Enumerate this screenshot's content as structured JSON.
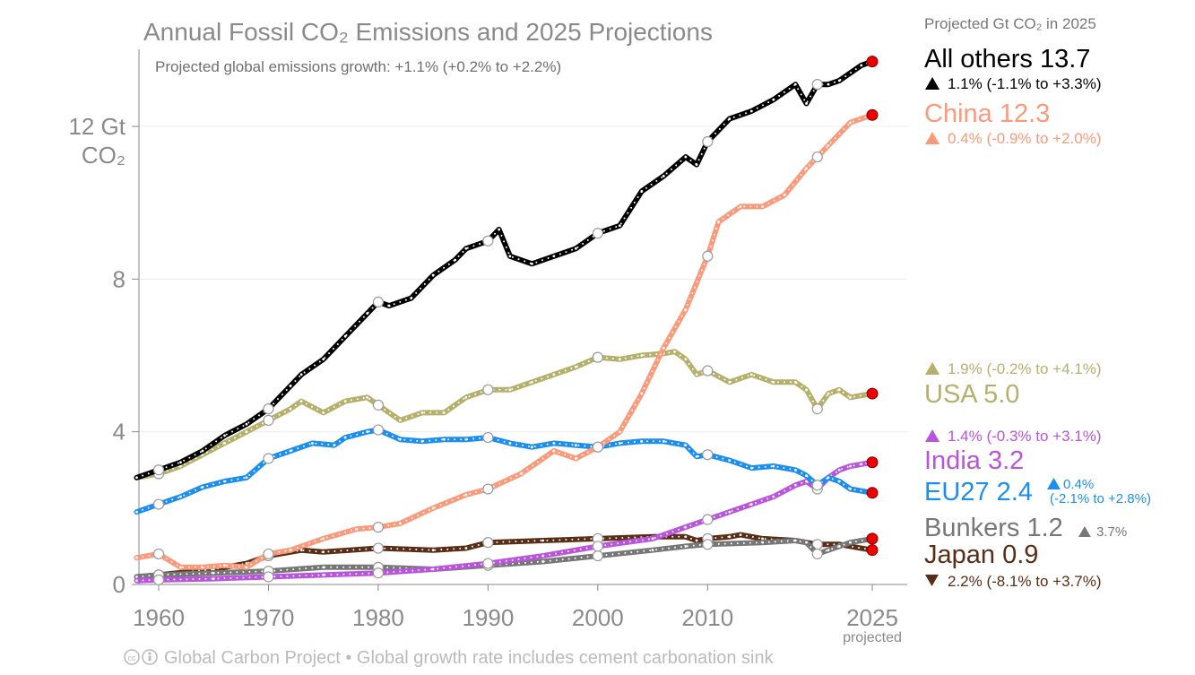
{
  "chart_data": {
    "type": "line",
    "title": "Annual Fossil CO₂ Emissions and 2025 Projections",
    "subtitle": "Projected global emissions growth: +1.1% (+0.2% to +2.2%)",
    "ylabel_line1": "12 Gt",
    "ylabel_line2": "CO₂",
    "legend_header": "Projected Gt CO₂ in 2025",
    "xlim": [
      1958,
      2028
    ],
    "ylim": [
      0,
      14
    ],
    "x_ticks": [
      {
        "value": 1960,
        "label": "1960"
      },
      {
        "value": 1970,
        "label": "1970"
      },
      {
        "value": 1980,
        "label": "1980"
      },
      {
        "value": 1990,
        "label": "1990"
      },
      {
        "value": 2000,
        "label": "2000"
      },
      {
        "value": 2010,
        "label": "2010"
      },
      {
        "value": 2025,
        "label": "2025"
      }
    ],
    "x_tick_note": "projected",
    "y_ticks": [
      {
        "value": 0,
        "label": "0"
      },
      {
        "value": 4,
        "label": "4"
      },
      {
        "value": 8,
        "label": "8"
      },
      {
        "value": 12,
        "label": ""
      }
    ],
    "grid": true,
    "footer": "Global Carbon Project  •  Global growth rate includes cement carbonation sink",
    "series": [
      {
        "id": "others",
        "name": "All others 13.7",
        "color": "#000000",
        "growth": "1.1% (-1.1% to +3.3%)",
        "arrow": "up",
        "x": [
          1958,
          1960,
          1962,
          1964,
          1966,
          1968,
          1970,
          1972,
          1973,
          1975,
          1977,
          1979,
          1980,
          1981,
          1983,
          1985,
          1987,
          1988,
          1990,
          1991,
          1992,
          1994,
          1996,
          1998,
          2000,
          2002,
          2004,
          2006,
          2008,
          2009,
          2010,
          2012,
          2014,
          2016,
          2018,
          2019,
          2020,
          2021,
          2022,
          2024,
          2025
        ],
        "values": [
          2.8,
          3.0,
          3.2,
          3.5,
          3.9,
          4.2,
          4.6,
          5.2,
          5.5,
          5.9,
          6.5,
          7.1,
          7.4,
          7.3,
          7.5,
          8.1,
          8.5,
          8.8,
          9.0,
          9.3,
          8.6,
          8.4,
          8.6,
          8.8,
          9.2,
          9.4,
          10.3,
          10.7,
          11.2,
          11.0,
          11.6,
          12.2,
          12.4,
          12.7,
          13.1,
          12.6,
          13.1,
          13.1,
          13.2,
          13.6,
          13.7
        ]
      },
      {
        "id": "china",
        "name": "China 12.3",
        "color": "#fb9a7a",
        "growth": "0.4% (-0.9% to +2.0%)",
        "arrow": "up",
        "x": [
          1958,
          1960,
          1962,
          1964,
          1966,
          1968,
          1970,
          1972,
          1975,
          1978,
          1980,
          1982,
          1985,
          1988,
          1990,
          1993,
          1996,
          1998,
          2000,
          2002,
          2004,
          2006,
          2008,
          2010,
          2011,
          2013,
          2015,
          2017,
          2019,
          2021,
          2023,
          2025
        ],
        "values": [
          0.7,
          0.8,
          0.45,
          0.45,
          0.5,
          0.45,
          0.8,
          0.9,
          1.2,
          1.45,
          1.5,
          1.6,
          2.0,
          2.35,
          2.5,
          2.9,
          3.5,
          3.3,
          3.6,
          4.0,
          5.0,
          6.2,
          7.2,
          8.6,
          9.5,
          9.9,
          9.9,
          10.2,
          10.9,
          11.5,
          12.1,
          12.3
        ]
      },
      {
        "id": "usa",
        "name": "USA 5.0",
        "color": "#b5b06c",
        "growth": "1.9% (-0.2% to +4.1%)",
        "arrow": "up",
        "x": [
          1958,
          1960,
          1962,
          1964,
          1966,
          1968,
          1970,
          1972,
          1973,
          1975,
          1977,
          1979,
          1980,
          1982,
          1984,
          1986,
          1988,
          1990,
          1992,
          1994,
          1996,
          1998,
          2000,
          2002,
          2004,
          2006,
          2007,
          2008,
          2009,
          2010,
          2012,
          2014,
          2016,
          2018,
          2019,
          2020,
          2021,
          2022,
          2023,
          2025
        ],
        "values": [
          2.8,
          2.9,
          3.1,
          3.4,
          3.7,
          4.0,
          4.3,
          4.6,
          4.8,
          4.5,
          4.8,
          4.9,
          4.7,
          4.3,
          4.5,
          4.5,
          4.9,
          5.1,
          5.1,
          5.3,
          5.5,
          5.7,
          5.95,
          5.9,
          6.0,
          6.05,
          6.1,
          5.9,
          5.5,
          5.6,
          5.3,
          5.5,
          5.3,
          5.3,
          5.1,
          4.6,
          5.0,
          5.1,
          4.9,
          5.0
        ]
      },
      {
        "id": "india",
        "name": "India 3.2",
        "color": "#b954dd",
        "growth": "1.4% (-0.3% to +3.1%)",
        "arrow": "up",
        "x": [
          1958,
          1960,
          1965,
          1970,
          1975,
          1980,
          1985,
          1990,
          1995,
          2000,
          2005,
          2008,
          2010,
          2012,
          2014,
          2016,
          2018,
          2019,
          2020,
          2021,
          2022,
          2023,
          2024,
          2025
        ],
        "values": [
          0.1,
          0.12,
          0.15,
          0.2,
          0.25,
          0.3,
          0.4,
          0.55,
          0.75,
          1.0,
          1.2,
          1.5,
          1.7,
          1.9,
          2.1,
          2.3,
          2.6,
          2.7,
          2.5,
          2.8,
          3.0,
          3.1,
          3.15,
          3.2
        ]
      },
      {
        "id": "eu27",
        "name": "EU27 2.4",
        "color": "#1c8ef0",
        "growth_main": "0.4%",
        "growth_range": "(-2.1% to +2.8%)",
        "arrow": "up",
        "x": [
          1958,
          1960,
          1962,
          1964,
          1966,
          1968,
          1970,
          1972,
          1974,
          1976,
          1977,
          1979,
          1980,
          1982,
          1984,
          1986,
          1988,
          1990,
          1992,
          1994,
          1996,
          1998,
          2000,
          2002,
          2004,
          2006,
          2008,
          2009,
          2010,
          2012,
          2014,
          2016,
          2018,
          2019,
          2020,
          2021,
          2022,
          2023,
          2025
        ],
        "values": [
          1.9,
          2.1,
          2.3,
          2.55,
          2.7,
          2.8,
          3.3,
          3.5,
          3.7,
          3.65,
          3.85,
          4.0,
          4.05,
          3.8,
          3.75,
          3.8,
          3.8,
          3.85,
          3.7,
          3.6,
          3.7,
          3.65,
          3.6,
          3.7,
          3.75,
          3.75,
          3.65,
          3.35,
          3.4,
          3.25,
          3.05,
          3.1,
          3.0,
          2.85,
          2.6,
          2.8,
          2.7,
          2.5,
          2.4
        ]
      },
      {
        "id": "bunkers",
        "name": "Bunkers 1.2",
        "color": "#777777",
        "growth": "3.7%",
        "arrow": "up",
        "x": [
          1958,
          1960,
          1965,
          1970,
          1975,
          1980,
          1985,
          1990,
          1995,
          2000,
          2005,
          2008,
          2010,
          2015,
          2018,
          2019,
          2020,
          2021,
          2022,
          2023,
          2025
        ],
        "values": [
          0.2,
          0.25,
          0.3,
          0.35,
          0.45,
          0.45,
          0.4,
          0.5,
          0.6,
          0.75,
          0.9,
          1.0,
          1.05,
          1.1,
          1.15,
          1.1,
          0.8,
          0.9,
          1.0,
          1.1,
          1.2
        ]
      },
      {
        "id": "japan",
        "name": "Japan 0.9",
        "color": "#5a2d16",
        "growth": "2.2% (-8.1% to +3.7%)",
        "arrow": "down",
        "x": [
          1958,
          1960,
          1965,
          1968,
          1970,
          1973,
          1975,
          1980,
          1985,
          1988,
          1990,
          1995,
          2000,
          2005,
          2008,
          2009,
          2010,
          2012,
          2013,
          2015,
          2018,
          2020,
          2022,
          2025
        ],
        "values": [
          0.2,
          0.25,
          0.4,
          0.55,
          0.75,
          0.9,
          0.85,
          0.95,
          0.9,
          0.95,
          1.1,
          1.15,
          1.2,
          1.25,
          1.25,
          1.15,
          1.2,
          1.25,
          1.3,
          1.2,
          1.15,
          1.05,
          1.05,
          0.9
        ]
      }
    ]
  }
}
